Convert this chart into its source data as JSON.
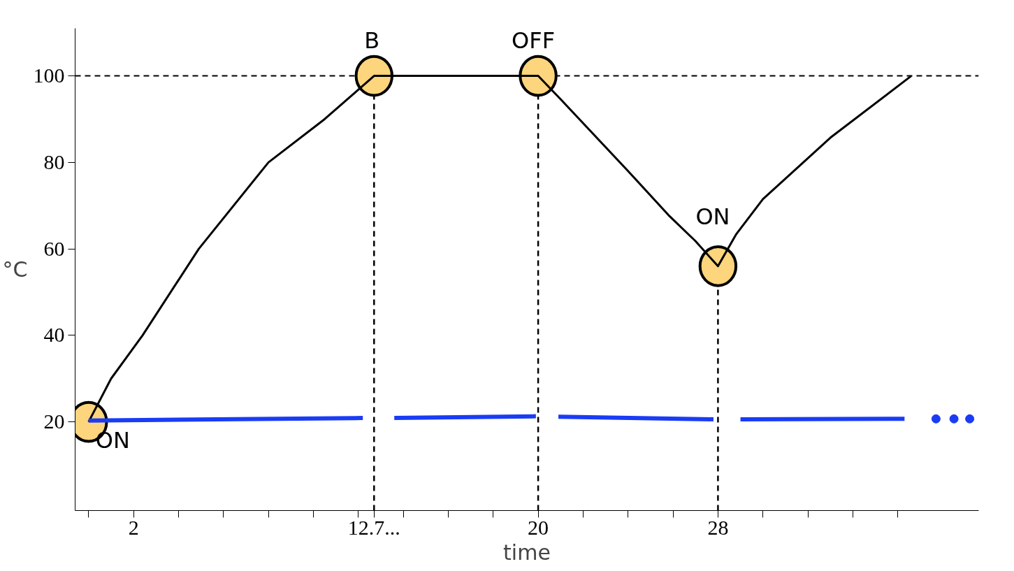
{
  "chart_data": {
    "type": "line",
    "xlabel": "time",
    "ylabel": "°C",
    "xlim": [
      -0.6,
      39.6
    ],
    "ylim": [
      -0.5,
      111
    ],
    "xticks": [
      {
        "value": 0,
        "label": null
      },
      2,
      {
        "value": 4,
        "label": null
      },
      {
        "value": 6,
        "label": null
      },
      {
        "value": 8,
        "label": null
      },
      {
        "value": 10,
        "label": null
      },
      {
        "value": 12,
        "label": null
      },
      {
        "value": 12.7,
        "label": "12.7..."
      },
      {
        "value": 14,
        "label": null
      },
      {
        "value": 16,
        "label": null
      },
      {
        "value": 18,
        "label": null
      },
      20,
      {
        "value": 22,
        "label": null
      },
      {
        "value": 24,
        "label": null
      },
      {
        "value": 26,
        "label": null
      },
      28,
      {
        "value": 30,
        "label": null
      },
      {
        "value": 32,
        "label": null
      },
      {
        "value": 34,
        "label": null
      },
      {
        "value": 36,
        "label": null
      }
    ],
    "yticks": [
      20,
      40,
      60,
      80,
      100
    ],
    "grid": false,
    "line_style": "solid",
    "series": [
      {
        "color": "#000000",
        "x": [
          0,
          1,
          2.4,
          4.9,
          8,
          10.5,
          12.7,
          20,
          21,
          24,
          25.8,
          27,
          28,
          28.8,
          30,
          33,
          36.6
        ],
        "values": [
          20,
          30,
          40,
          60,
          80,
          90,
          100,
          100,
          94.6,
          78,
          67.8,
          61.8,
          56,
          63.3,
          71.5,
          85.7,
          100
        ]
      },
      {
        "color": "#1a3cf5",
        "x": [
          0,
          12.2,
          12.9,
          13.6,
          19.9,
          20.4,
          20.9,
          27.8,
          28.4,
          29,
          36.3
        ],
        "values": [
          20.3,
          20.9,
          null,
          20.9,
          21.3,
          null,
          21.2,
          20.6,
          null,
          20.6,
          20.7
        ]
      },
      {
        "type": "scatter",
        "marker": "circle",
        "color": "#1a3cf5",
        "x": [
          37.7,
          38.5,
          39.2
        ],
        "values": [
          20.7,
          20.7,
          20.7
        ]
      },
      {
        "type": "scatter",
        "marker": "circle",
        "color": "#fdd57c",
        "x": [
          0,
          12.7,
          20,
          28
        ],
        "values": [
          20,
          100,
          100,
          56
        ]
      }
    ],
    "ref_lines": [
      {
        "axis": "y",
        "value": 100,
        "line_style": "dashed",
        "color": "#000000"
      },
      {
        "axis": "x",
        "value": 12.7,
        "line_style": "dashed",
        "color": "#000000"
      },
      {
        "axis": "x",
        "value": 20,
        "line_style": "dashed",
        "color": "#000000"
      },
      {
        "axis": "x",
        "value": 28,
        "line_style": "dashed",
        "color": "#000000"
      }
    ],
    "annotations": [
      {
        "text": "ON",
        "x": 0,
        "y": 20
      },
      {
        "text": "B",
        "x": 12.7,
        "y": 100
      },
      {
        "text": "OFF",
        "x": 20,
        "y": 100
      },
      {
        "text": "ON",
        "x": 28,
        "y": 56
      }
    ]
  }
}
